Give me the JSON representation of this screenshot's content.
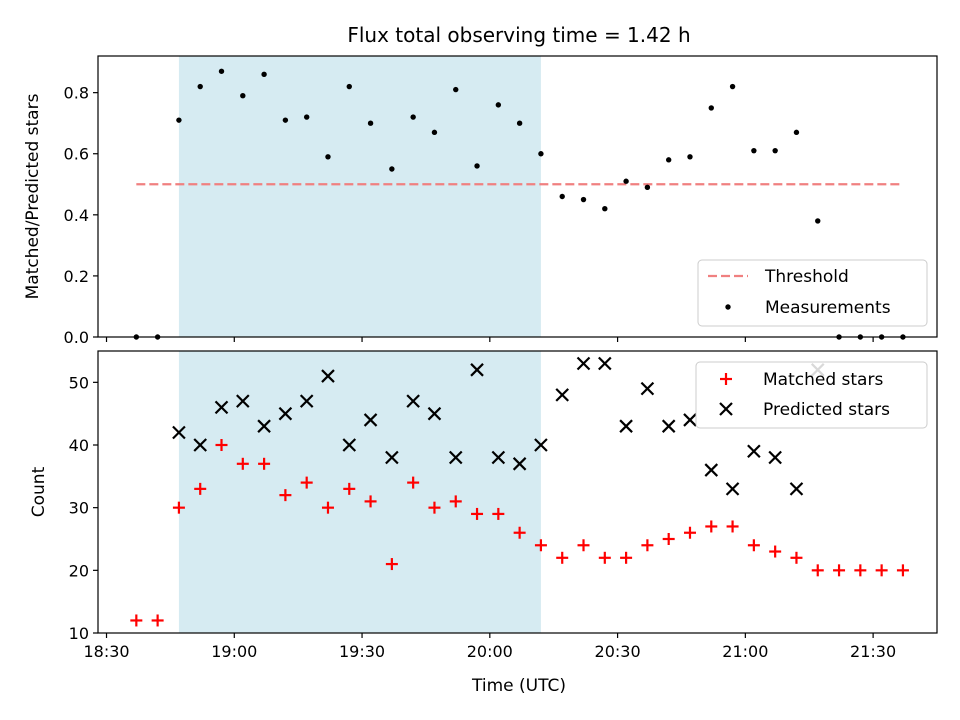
{
  "chart_data": [
    {
      "type": "scatter",
      "title": "Flux total observing time = 1.42 h",
      "xlabel": "",
      "ylabel": "Matched/Predicted stars",
      "ylim": [
        0,
        0.92
      ],
      "yticks": [
        "0.0",
        "0.2",
        "0.4",
        "0.6",
        "0.8"
      ],
      "xlim": [
        "18:28",
        "21:45"
      ],
      "shaded_region": [
        "18:47",
        "20:12"
      ],
      "shade_color": "#add8e6",
      "threshold": {
        "name": "Threshold",
        "y": 0.5,
        "x": [
          "18:37",
          "21:37"
        ],
        "color": "#f08080"
      },
      "legend": {
        "placement": "bottom-right",
        "entries": [
          "Threshold",
          "Measurements"
        ]
      },
      "series": [
        {
          "name": "Measurements",
          "color": "#000000",
          "points": [
            [
              "18:37",
              0.0
            ],
            [
              "18:42",
              0.0
            ],
            [
              "18:47",
              0.71
            ],
            [
              "18:52",
              0.82
            ],
            [
              "18:57",
              0.87
            ],
            [
              "19:02",
              0.79
            ],
            [
              "19:07",
              0.86
            ],
            [
              "19:12",
              0.71
            ],
            [
              "19:17",
              0.72
            ],
            [
              "19:22",
              0.59
            ],
            [
              "19:27",
              0.82
            ],
            [
              "19:32",
              0.7
            ],
            [
              "19:37",
              0.55
            ],
            [
              "19:42",
              0.72
            ],
            [
              "19:47",
              0.67
            ],
            [
              "19:52",
              0.81
            ],
            [
              "19:57",
              0.56
            ],
            [
              "20:02",
              0.76
            ],
            [
              "20:07",
              0.7
            ],
            [
              "20:12",
              0.6
            ],
            [
              "20:17",
              0.46
            ],
            [
              "20:22",
              0.45
            ],
            [
              "20:27",
              0.42
            ],
            [
              "20:32",
              0.51
            ],
            [
              "20:37",
              0.49
            ],
            [
              "20:42",
              0.58
            ],
            [
              "20:47",
              0.59
            ],
            [
              "20:52",
              0.75
            ],
            [
              "20:57",
              0.82
            ],
            [
              "21:02",
              0.61
            ],
            [
              "21:07",
              0.61
            ],
            [
              "21:12",
              0.67
            ],
            [
              "21:17",
              0.38
            ],
            [
              "21:22",
              0.0
            ],
            [
              "21:27",
              0.0
            ],
            [
              "21:32",
              0.0
            ],
            [
              "21:37",
              0.0
            ]
          ]
        }
      ]
    },
    {
      "type": "scatter",
      "title": "",
      "xlabel": "Time (UTC)",
      "ylabel": "Count",
      "ylim": [
        10,
        55
      ],
      "yticks": [
        "10",
        "20",
        "30",
        "40",
        "50"
      ],
      "xticks": [
        "18:30",
        "19:00",
        "19:30",
        "20:00",
        "20:30",
        "21:00",
        "21:30"
      ],
      "xlim": [
        "18:28",
        "21:45"
      ],
      "shaded_region": [
        "18:47",
        "20:12"
      ],
      "shade_color": "#add8e6",
      "legend": {
        "placement": "top-right",
        "entries": [
          "Matched stars",
          "Predicted stars"
        ]
      },
      "series": [
        {
          "name": "Matched stars",
          "marker": "plus",
          "color": "#ff0000",
          "points": [
            [
              "18:37",
              12
            ],
            [
              "18:42",
              12
            ],
            [
              "18:47",
              30
            ],
            [
              "18:52",
              33
            ],
            [
              "18:57",
              40
            ],
            [
              "19:02",
              37
            ],
            [
              "19:07",
              37
            ],
            [
              "19:12",
              32
            ],
            [
              "19:17",
              34
            ],
            [
              "19:22",
              30
            ],
            [
              "19:27",
              33
            ],
            [
              "19:32",
              31
            ],
            [
              "19:37",
              21
            ],
            [
              "19:42",
              34
            ],
            [
              "19:47",
              30
            ],
            [
              "19:52",
              31
            ],
            [
              "19:57",
              29
            ],
            [
              "20:02",
              29
            ],
            [
              "20:07",
              26
            ],
            [
              "20:12",
              24
            ],
            [
              "20:17",
              22
            ],
            [
              "20:22",
              24
            ],
            [
              "20:27",
              22
            ],
            [
              "20:32",
              22
            ],
            [
              "20:37",
              24
            ],
            [
              "20:42",
              25
            ],
            [
              "20:47",
              26
            ],
            [
              "20:52",
              27
            ],
            [
              "20:57",
              27
            ],
            [
              "21:02",
              24
            ],
            [
              "21:07",
              23
            ],
            [
              "21:12",
              22
            ],
            [
              "21:17",
              20
            ],
            [
              "21:22",
              20
            ],
            [
              "21:27",
              20
            ],
            [
              "21:32",
              20
            ],
            [
              "21:37",
              20
            ]
          ]
        },
        {
          "name": "Predicted stars",
          "marker": "x",
          "color": "#000000",
          "points": [
            [
              "18:47",
              42
            ],
            [
              "18:52",
              40
            ],
            [
              "18:57",
              46
            ],
            [
              "19:02",
              47
            ],
            [
              "19:07",
              43
            ],
            [
              "19:12",
              45
            ],
            [
              "19:17",
              47
            ],
            [
              "19:22",
              51
            ],
            [
              "19:27",
              40
            ],
            [
              "19:32",
              44
            ],
            [
              "19:37",
              38
            ],
            [
              "19:42",
              47
            ],
            [
              "19:47",
              45
            ],
            [
              "19:52",
              38
            ],
            [
              "19:57",
              52
            ],
            [
              "20:02",
              38
            ],
            [
              "20:07",
              37
            ],
            [
              "20:12",
              40
            ],
            [
              "20:17",
              48
            ],
            [
              "20:22",
              53
            ],
            [
              "20:27",
              53
            ],
            [
              "20:32",
              43
            ],
            [
              "20:37",
              49
            ],
            [
              "20:42",
              43
            ],
            [
              "20:47",
              44
            ],
            [
              "20:52",
              36
            ],
            [
              "20:57",
              33
            ],
            [
              "21:02",
              39
            ],
            [
              "21:07",
              38
            ],
            [
              "21:12",
              33
            ],
            [
              "21:17",
              52
            ]
          ]
        }
      ]
    }
  ]
}
